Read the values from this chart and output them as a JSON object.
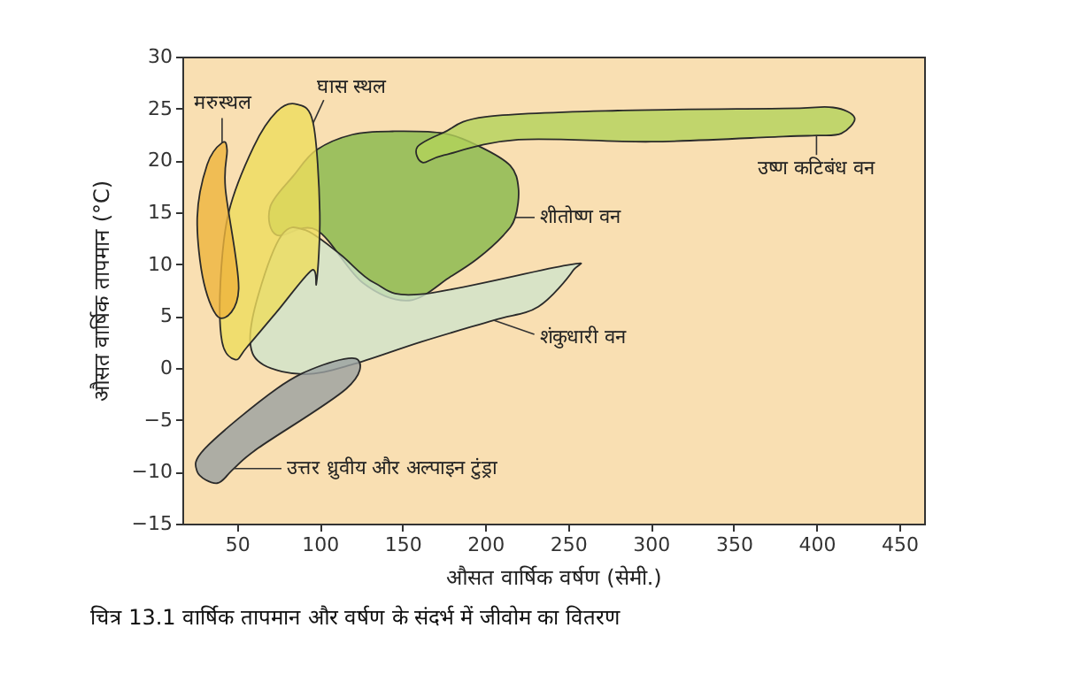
{
  "chart_data": {
    "type": "area",
    "title": "चित्र 13.1  वार्षिक तापमान और वर्षण के संदर्भ में जीवोम का वितरण",
    "xlabel": "औसत वार्षिक वर्षण (सेमी.)",
    "ylabel": "औसत वार्षिक तापमान (°C)",
    "xlim": [
      17,
      465
    ],
    "ylim": [
      -15,
      30
    ],
    "xticks": [
      50,
      100,
      150,
      200,
      250,
      300,
      350,
      400,
      450
    ],
    "yticks": [
      -15,
      -10,
      -5,
      0,
      5,
      10,
      15,
      20,
      25,
      30
    ],
    "grid": false,
    "series": [
      {
        "color": "#86b84a",
        "x": [
          98,
          120,
          144,
          175,
          197,
          215,
          220,
          218,
          211,
          195,
          179,
          154,
          126,
          98,
          74,
          70,
          84
        ],
        "values": [
          21,
          22.5,
          22.8,
          22.6,
          21.3,
          19.5,
          17.3,
          14.5,
          12.8,
          10.5,
          8.8,
          6.5,
          8.2,
          13.3,
          12.8,
          15.5,
          18.5
        ]
      },
      {
        "color": "#b3d25a",
        "x": [
          159,
          175,
          200,
          280,
          380,
          410,
          423,
          415,
          400,
          380,
          300,
          220,
          175,
          162
        ],
        "values": [
          21.3,
          22.7,
          24.2,
          24.8,
          25,
          25.1,
          24.1,
          22.6,
          22.4,
          22.3,
          21.8,
          22,
          20.5,
          19.8
        ]
      },
      {
        "color": "#cfe3cb",
        "x": [
          91,
          112,
          133,
          161,
          249,
          253,
          232,
          205,
          161,
          119,
          91,
          66,
          58,
          63,
          77
        ],
        "values": [
          13.3,
          11,
          8.2,
          7.1,
          9.9,
          9.4,
          5.9,
          4.6,
          2.5,
          0.3,
          -0.6,
          0.3,
          2.5,
          7.1,
          12.8
        ]
      },
      {
        "color": "#eedc5c",
        "x": [
          86,
          96,
          100,
          98,
          95,
          74,
          56,
          49,
          41,
          40,
          45,
          60,
          74
        ],
        "values": [
          25.4,
          23.6,
          15,
          8.2,
          9.4,
          5.4,
          2,
          0.8,
          2.5,
          8.2,
          15,
          21.3,
          24.7
        ]
      },
      {
        "color": "#eeb43c",
        "x": [
          41,
          44,
          43,
          51,
          40,
          30,
          26,
          32
        ],
        "values": [
          21.7,
          21,
          17.3,
          7.6,
          4.8,
          8.2,
          14.5,
          19.6
        ]
      },
      {
        "color": "#9aa0a0",
        "x": [
          123,
          116,
          63,
          48,
          38,
          26,
          31,
          74,
          102
        ],
        "values": [
          0.8,
          -2,
          -7.7,
          -9.7,
          -11.1,
          -10,
          -7.7,
          -2,
          0.3
        ]
      }
    ],
    "annotations": [
      {
        "text": "मरुस्थल",
        "x": 41,
        "y": 21.7
      },
      {
        "text": "घास स्थल",
        "x": 96,
        "y": 23.6
      },
      {
        "text": "शीतोष्ण वन",
        "x": 218,
        "y": 14.5
      },
      {
        "text": "उष्ण कटिबंध वन",
        "x": 400,
        "y": 22.4
      },
      {
        "text": "शंकुधारी वन",
        "x": 205,
        "y": 4.6
      },
      {
        "text": "उत्तर ध्रुवीय और अल्पाइन टुंड्रा",
        "x": 48,
        "y": -9.7
      }
    ]
  }
}
